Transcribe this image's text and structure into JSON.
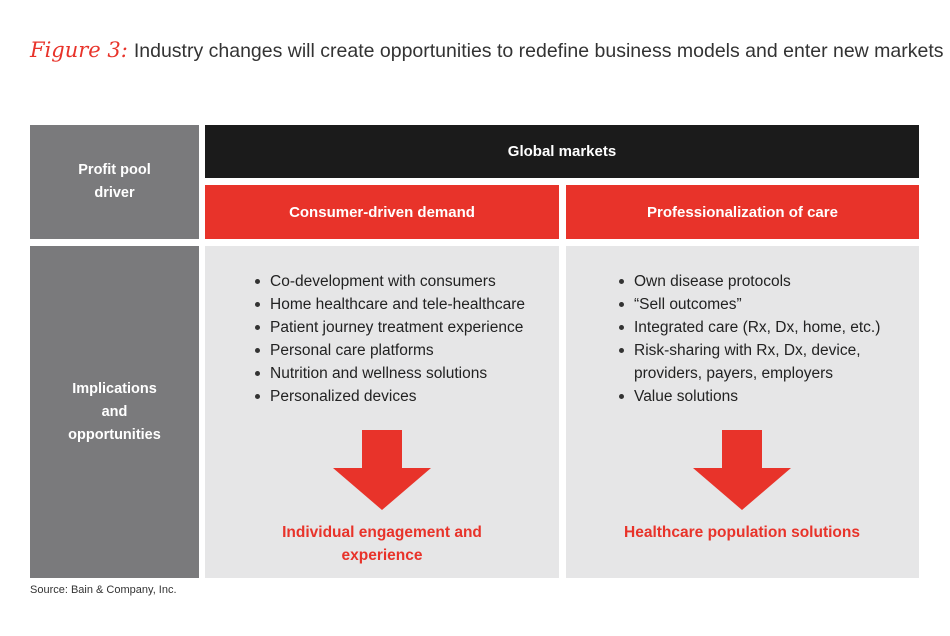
{
  "title": {
    "figure_label": "Figure 3:",
    "text": "Industry changes will create opportunities to redefine business models and enter new markets"
  },
  "table": {
    "row1_label": "Profit pool driver",
    "header": "Global markets",
    "columns": [
      {
        "label": "Consumer-driven demand",
        "bullets": [
          "Co-development with consumers",
          "Home healthcare and tele-healthcare",
          "Patient journey treatment experience",
          "Personal care platforms",
          "Nutrition and wellness solutions",
          "Personalized devices"
        ],
        "outcome": "Individual engagement and experience"
      },
      {
        "label": "Professionalization of care",
        "bullets": [
          "Own disease protocols",
          "“Sell outcomes”",
          "Integrated care (Rx, Dx, home, etc.)",
          "Risk-sharing with Rx, Dx, device, providers, payers, employers",
          "Value solutions"
        ],
        "outcome": "Healthcare population solutions"
      }
    ],
    "row2_label": "Implications and opportunities"
  },
  "source": "Source: Bain & Company, Inc.",
  "colors": {
    "accent_red": "#e8332a",
    "header_black": "#1b1b1b",
    "label_gray": "#7a7a7c",
    "panel_gray": "#e6e6e7"
  }
}
